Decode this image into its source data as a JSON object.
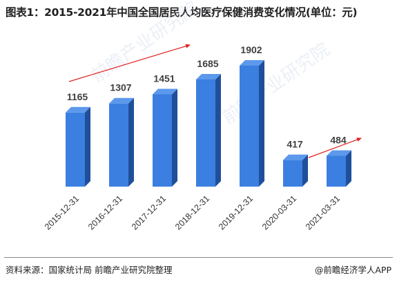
{
  "title": "图表1：2015-2021年中国全国居民人均医疗保健消费变化情况(单位：元)",
  "watermark_text": "前瞻产业研究院",
  "source": "资料来源：国家统计局 前瞻产业研究院整理",
  "credit": "@前瞻经济学人APP",
  "colors": {
    "bar_front": "#3b7fe0",
    "bar_side": "#1f4f9a",
    "bar_top": "#5c98ec",
    "trend_arrow": "#e02020",
    "label": "#404040"
  },
  "chart_data": {
    "type": "bar",
    "categories": [
      "2015-12-31",
      "2016-12-31",
      "2017-12-31",
      "2018-12-31",
      "2019-12-31",
      "2020-03-31",
      "2021-03-31"
    ],
    "values": [
      1165,
      1307,
      1451,
      1685,
      1902,
      417,
      484
    ],
    "data_labels": [
      "1165",
      "1307",
      "1451",
      "1685",
      "1902",
      "417",
      "484"
    ],
    "title": "图表1：2015-2021年中国全国居民人均医疗保健消费变化情况(单位：元)",
    "xlabel": "",
    "ylabel": "",
    "ylim": [
      0,
      2200
    ],
    "grid": false,
    "legend": "none",
    "annotations": [
      "upward trend arrow over 2015-2019",
      "upward trend arrow over 2020-03-31 to 2021-03-31"
    ]
  }
}
